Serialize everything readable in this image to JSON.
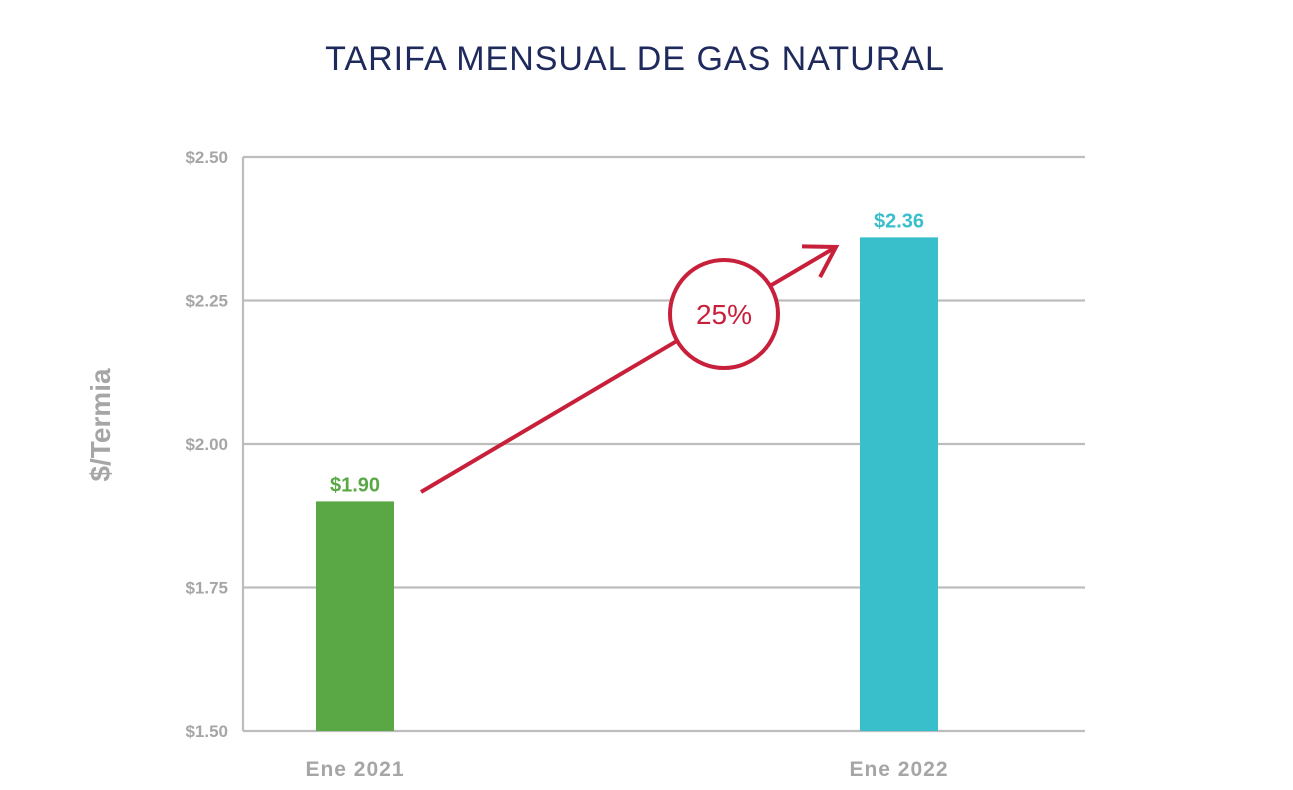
{
  "chart_data": {
    "type": "bar",
    "title": "TARIFA MENSUAL DE GAS NATURAL",
    "ylabel": "$/Termia",
    "xlabel": "",
    "categories": [
      "Ene 2021",
      "Ene 2022"
    ],
    "values": [
      1.9,
      2.36
    ],
    "data_labels": [
      "$1.90",
      "$2.36"
    ],
    "bar_colors": [
      "#5aa845",
      "#39bfcb"
    ],
    "ylim": [
      1.5,
      2.5
    ],
    "yticks": [
      1.5,
      1.75,
      2.0,
      2.25,
      2.5
    ],
    "ytick_labels": [
      "$1.50",
      "$1.75",
      "$2.00",
      "$2.25",
      "$2.50"
    ],
    "grid": true,
    "annotation": {
      "label": "25%",
      "color": "#c8203a"
    }
  }
}
